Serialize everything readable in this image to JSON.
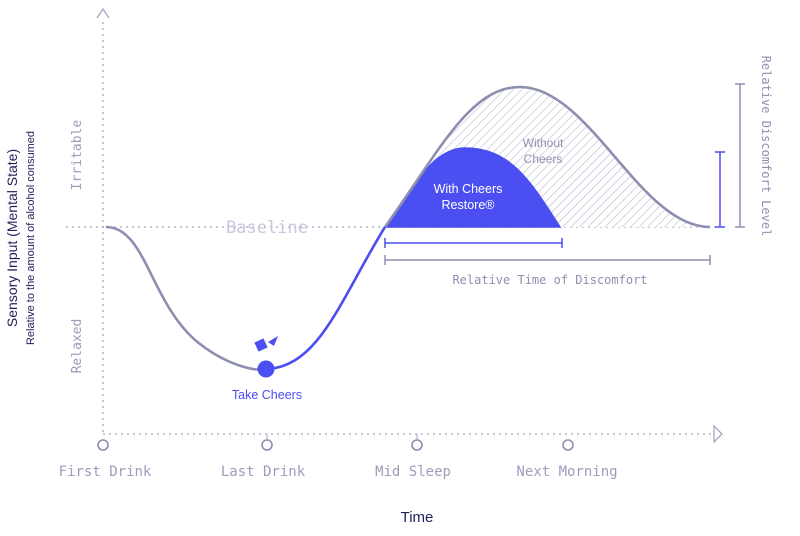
{
  "y_axis": {
    "title": "Sensory Input (Mental State)",
    "subtitle": "Relative to the amount of alcohol consumed",
    "upper_label": "Irritable",
    "lower_label": "Relaxed"
  },
  "x_axis": {
    "title": "Time",
    "ticks": [
      "First Drink",
      "Last Drink",
      "Mid Sleep",
      "Next Morning"
    ]
  },
  "baseline_label": "Baseline",
  "annotations": {
    "take_cheers": "Take Cheers",
    "with_cheers_line1": "With Cheers",
    "with_cheers_line2": "Restore®",
    "without_cheers_line1": "Without",
    "without_cheers_line2": "Cheers",
    "relative_time": "Relative Time of Discomfort",
    "relative_level": "Relative Discomfort Level"
  },
  "colors": {
    "accent": "#4b4ef0",
    "curve": "#8d8fb0",
    "axis": "#a4a6c4",
    "label": "#9b9dba",
    "title": "#1f1f5c"
  }
}
